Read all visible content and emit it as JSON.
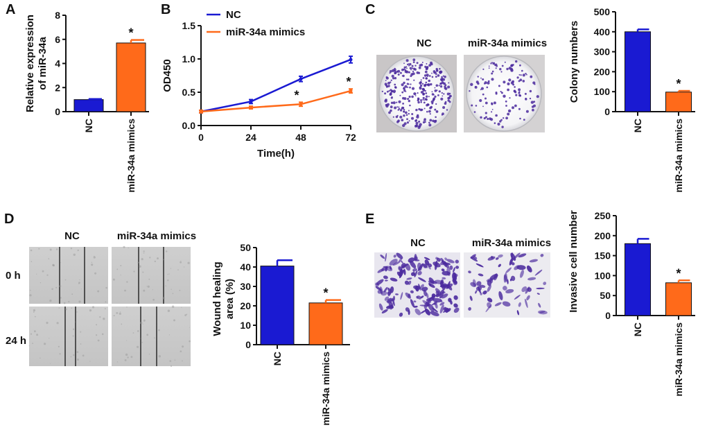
{
  "panel_labels": {
    "a": "A",
    "b": "B",
    "c": "C",
    "d": "D",
    "e": "E"
  },
  "colors": {
    "nc": "#1a1ad2",
    "mimics": "#ff6a1a",
    "crystal_violet": "#4b2a9e"
  },
  "panel_c_photos": {
    "nc_label": "NC",
    "mimics_label": "miR-34a mimics"
  },
  "panel_d_photos": {
    "nc_label": "NC",
    "mimics_label": "miR-34a mimics",
    "row_0h": "0 h",
    "row_24h": "24 h"
  },
  "panel_e_photos": {
    "nc_label": "NC",
    "mimics_label": "miR-34a mimics"
  },
  "chart_data": [
    {
      "id": "A",
      "type": "bar",
      "ylabel_line1": "Relative expression",
      "ylabel_line2": "of miR-34a",
      "ylim": [
        0,
        8
      ],
      "yticks": [
        "0",
        "2",
        "4",
        "6",
        "8"
      ],
      "categories": [
        "NC",
        "miR-34a mimics"
      ],
      "values": [
        1.0,
        5.7
      ],
      "errors": [
        0.05,
        0.25
      ],
      "significance": [
        "",
        "*"
      ]
    },
    {
      "id": "B",
      "type": "line",
      "xlabel": "Time(h)",
      "ylabel": "OD450",
      "xlim": [
        0,
        72
      ],
      "ylim": [
        0,
        1.5
      ],
      "xticks": [
        "0",
        "24",
        "48",
        "72"
      ],
      "yticks": [
        "0.0",
        "0.5",
        "1.0",
        "1.5"
      ],
      "x": [
        0,
        24,
        48,
        72
      ],
      "series": [
        {
          "name": "NC",
          "values": [
            0.21,
            0.36,
            0.7,
            0.99
          ],
          "errors": [
            0.02,
            0.03,
            0.04,
            0.05
          ]
        },
        {
          "name": "miR-34a mimics",
          "values": [
            0.21,
            0.27,
            0.32,
            0.52
          ],
          "errors": [
            0.02,
            0.02,
            0.03,
            0.03
          ]
        }
      ],
      "significance": [
        "",
        "",
        "*",
        "*"
      ]
    },
    {
      "id": "C",
      "type": "bar",
      "ylabel_line1": "Colony numbers",
      "ylabel_line2": "",
      "ylim": [
        0,
        500
      ],
      "yticks": [
        "0",
        "100",
        "200",
        "300",
        "400",
        "500"
      ],
      "categories": [
        "NC",
        "miR-34a mimics"
      ],
      "values": [
        400,
        98
      ],
      "errors": [
        12,
        6
      ],
      "significance": [
        "",
        "*"
      ]
    },
    {
      "id": "D",
      "type": "bar",
      "ylabel_line1": "Wound healing",
      "ylabel_line2": "area (%)",
      "ylim": [
        0,
        50
      ],
      "yticks": [
        "0",
        "10",
        "20",
        "30",
        "40",
        "50"
      ],
      "categories": [
        "NC",
        "miR-34a mimics"
      ],
      "values": [
        40.5,
        21.5
      ],
      "errors": [
        3.0,
        1.5
      ],
      "significance": [
        "",
        "*"
      ]
    },
    {
      "id": "E",
      "type": "bar",
      "ylabel_line1": "Invasive cell number",
      "ylabel_line2": "",
      "ylim": [
        0,
        250
      ],
      "yticks": [
        "0",
        "50",
        "100",
        "150",
        "200",
        "250"
      ],
      "categories": [
        "NC",
        "miR-34a mimics"
      ],
      "values": [
        180,
        82
      ],
      "errors": [
        12,
        6
      ],
      "significance": [
        "",
        "*"
      ]
    }
  ]
}
